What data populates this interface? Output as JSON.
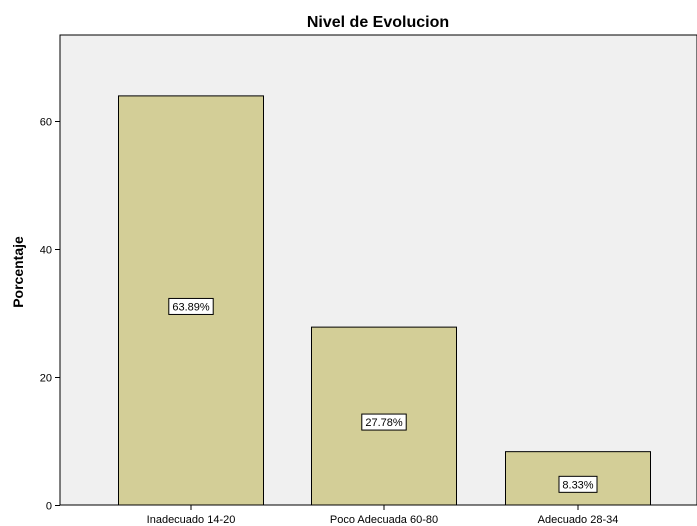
{
  "chart_data": {
    "type": "bar",
    "title": "Nivel de Evolucion",
    "xlabel": "",
    "ylabel": "Porcentaje",
    "categories": [
      "Inadecuado 14-20",
      "Poco Adecuada 60-80",
      "Adecuado 28-34"
    ],
    "values": [
      63.89,
      27.78,
      8.33
    ],
    "data_labels": [
      "63.89%",
      "27.78%",
      "8.33%"
    ],
    "ylim": [
      0,
      73.4
    ],
    "yticks": [
      0,
      20,
      40,
      60
    ],
    "grid": false,
    "legend": "none",
    "colors": {
      "plot_background": "#F0F0F0",
      "bar_fill": "#D3CE97",
      "bar_stroke": "#000000"
    }
  }
}
